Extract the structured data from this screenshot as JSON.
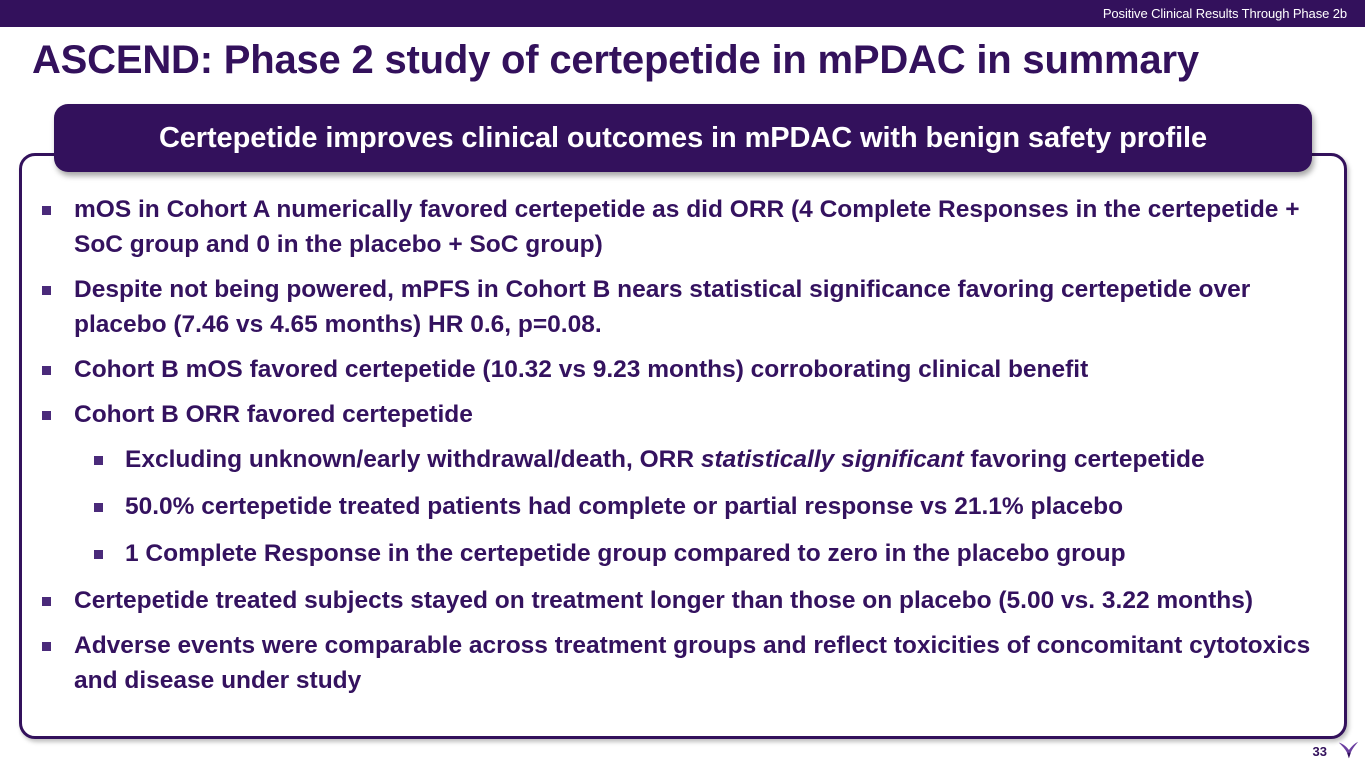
{
  "header": {
    "section_label": "Positive Clinical Results Through Phase 2b",
    "title": "ASCEND: Phase 2 study of certepetide in mPDAC in summary"
  },
  "banner": {
    "text": "Certepetide improves clinical outcomes in mPDAC with benign safety profile"
  },
  "bullets": [
    {
      "level": 1,
      "text": "mOS in Cohort A numerically favored certepetide as did ORR (4 Complete Responses in the certepetide + SoC group and 0 in the placebo + SoC group)"
    },
    {
      "level": 1,
      "text": "Despite not being powered, mPFS in Cohort B nears statistical significance favoring certepetide over placebo (7.46 vs 4.65 months) HR 0.6, p=0.08."
    },
    {
      "level": 1,
      "text": "Cohort B mOS favored certepetide (10.32 vs 9.23 months) corroborating clinical benefit"
    },
    {
      "level": 1,
      "text": "Cohort B ORR favored certepetide"
    },
    {
      "level": 2,
      "text_before": "Excluding unknown/early withdrawal/death, ORR ",
      "text_italic": "statistically significant",
      "text_after": " favoring certepetide"
    },
    {
      "level": 2,
      "text": "50.0% certepetide treated patients had complete or partial response vs 21.1% placebo"
    },
    {
      "level": 2,
      "text": "1 Complete Response in the certepetide group compared to zero in the placebo group"
    },
    {
      "level": 1,
      "text": "Certepetide treated subjects stayed on treatment longer than those on placebo (5.00 vs. 3.22 months)"
    },
    {
      "level": 1,
      "text": "Adverse events were comparable across treatment groups and reflect toxicities of concomitant cytotoxics and disease under study"
    }
  ],
  "footer": {
    "page_number": "33",
    "logo_icon": "bird-logo-icon"
  },
  "colors": {
    "brand_purple": "#33115c",
    "text_purple": "#34125f",
    "bullet_purple": "#4a2a7a",
    "white": "#ffffff"
  }
}
